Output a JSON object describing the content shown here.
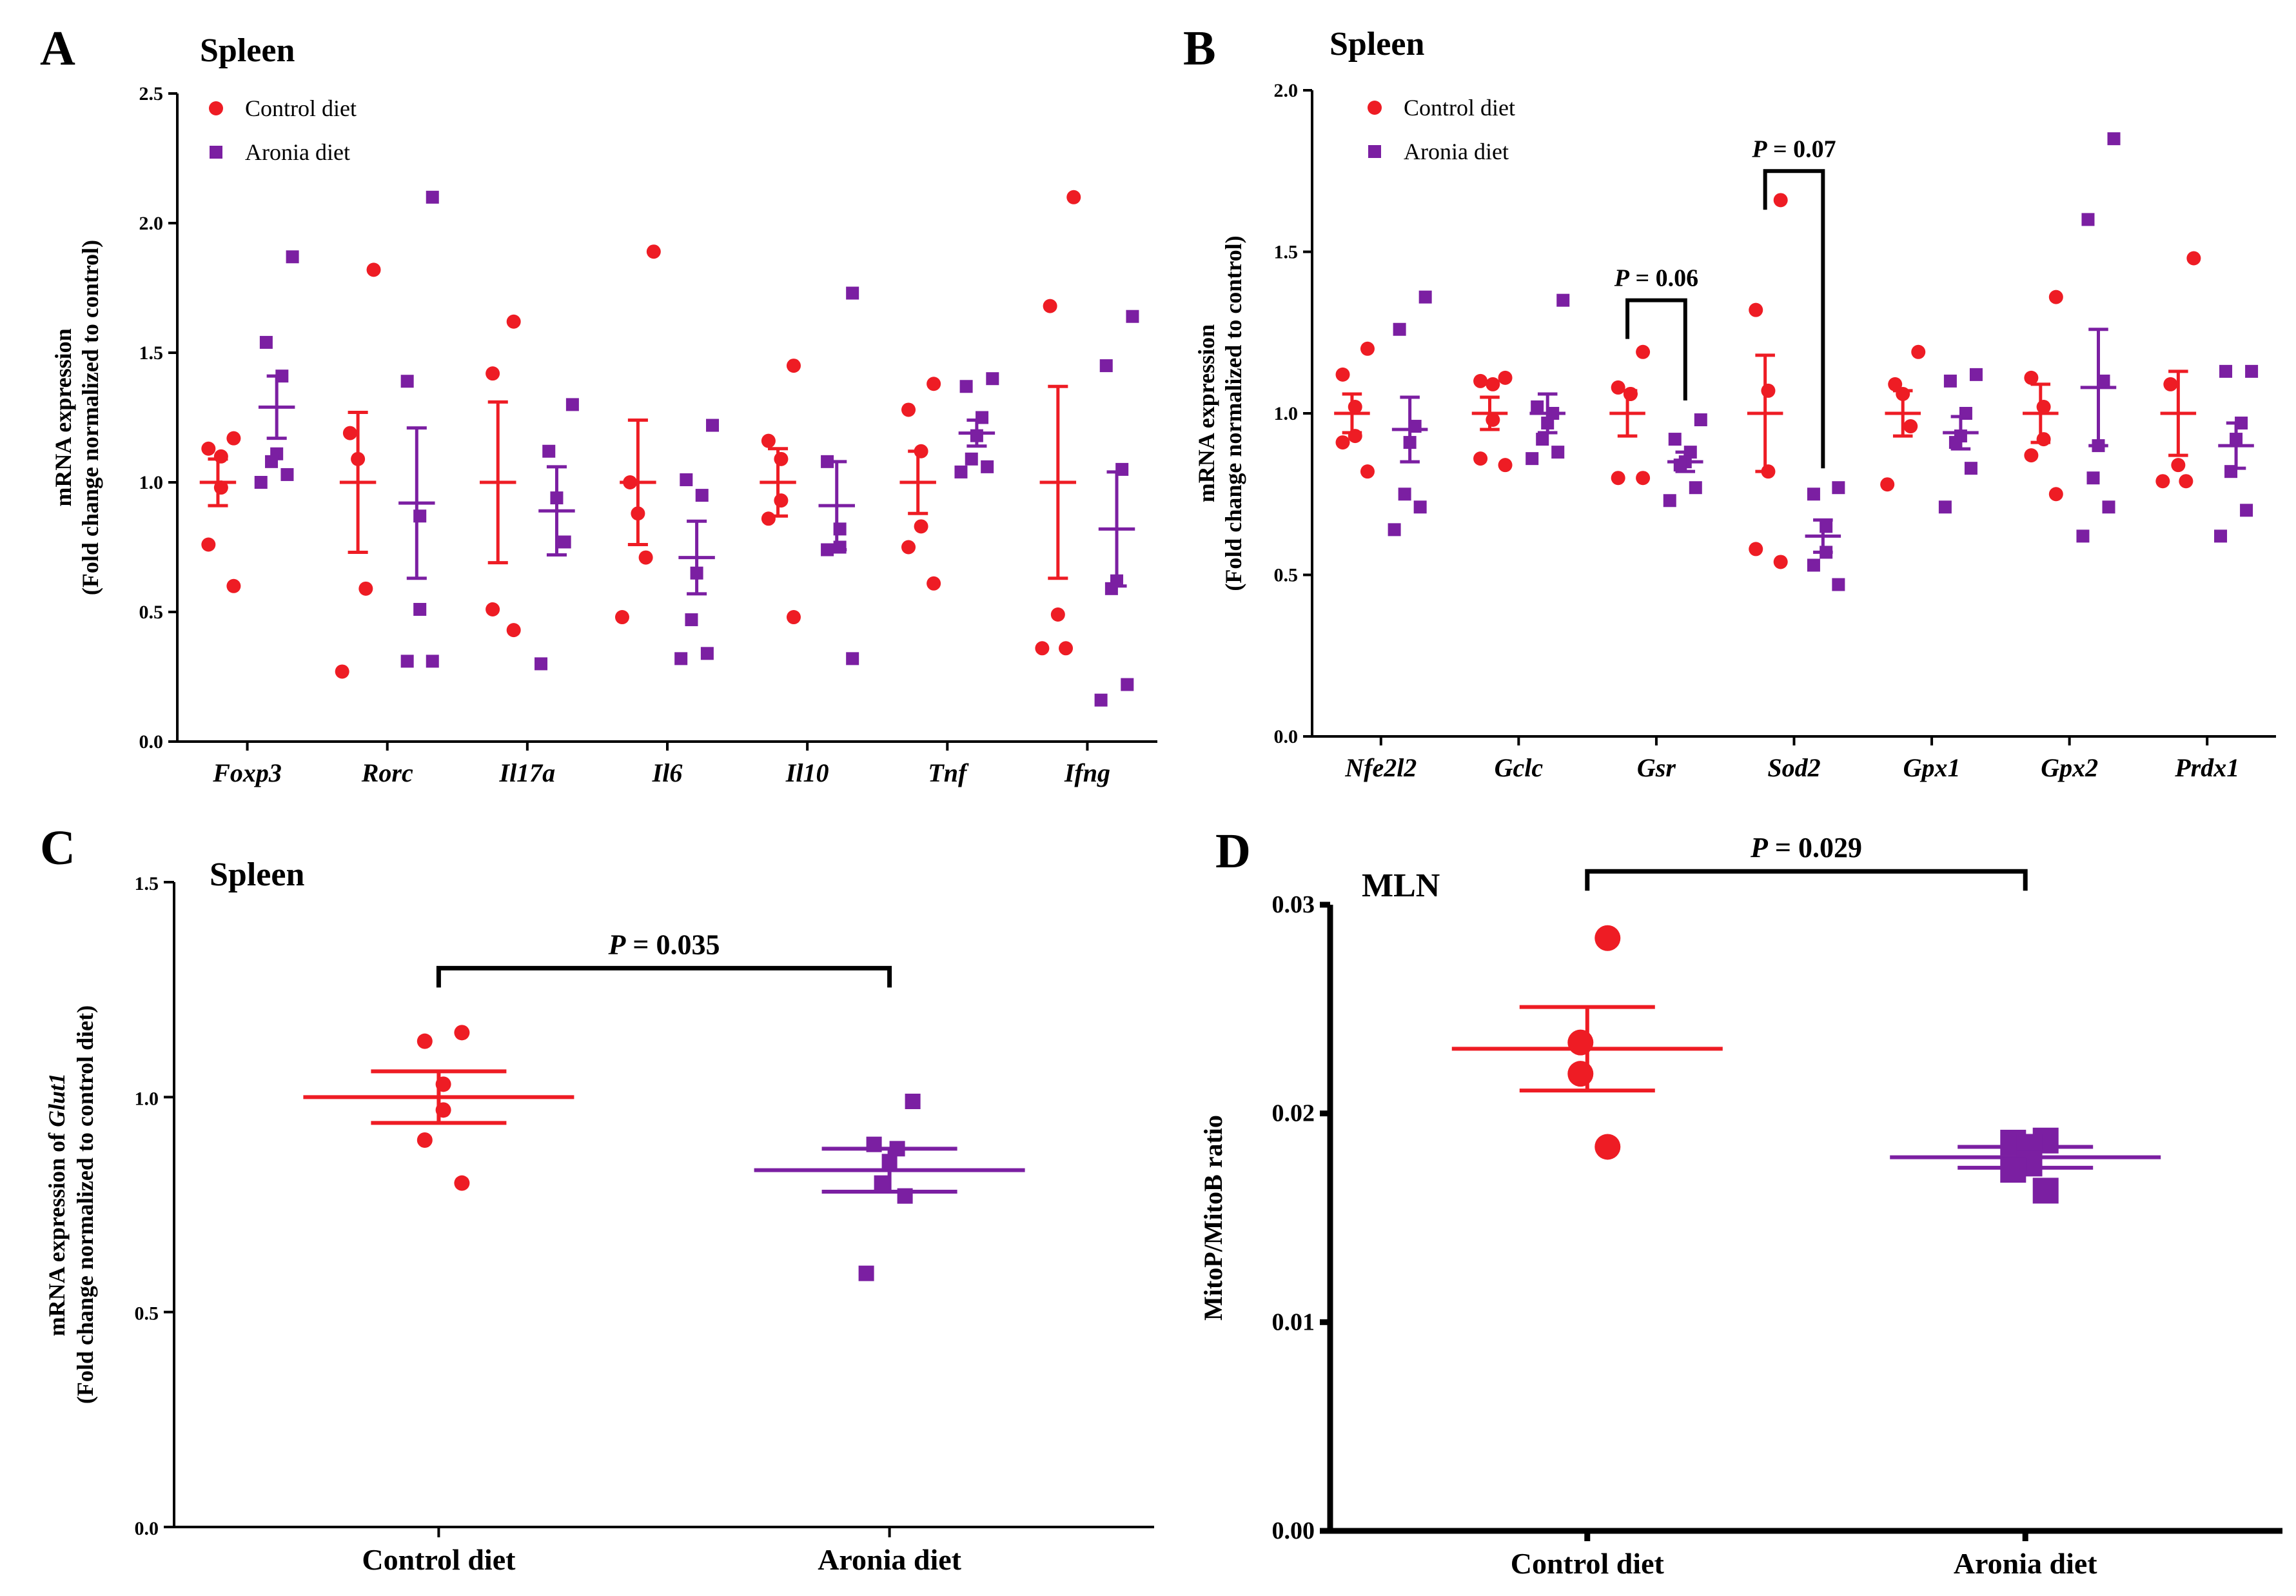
{
  "colors": {
    "control": "#ee1c24",
    "aronia": "#7b1fa2",
    "axis": "#000000"
  },
  "chart_data": [
    {
      "panel": "A",
      "type": "scatter",
      "title": "Spleen",
      "ylabel": "mRNA expression",
      "ylabel2": "(Fold change normalized to control)",
      "ylim": [
        0,
        2.5
      ],
      "yticks": [
        "0.0",
        "0.5",
        "1.0",
        "1.5",
        "2.0",
        "2.5"
      ],
      "legend": [
        "Control diet",
        "Aronia diet"
      ],
      "categories": [
        "Foxp3",
        "Rorc",
        "Il17a",
        "Il6",
        "Il10",
        "Tnf",
        "Ifng"
      ],
      "control": [
        {
          "points": [
            1.17,
            1.13,
            1.1,
            0.98,
            0.76,
            0.6
          ],
          "mean": 1.0,
          "sem": 0.09
        },
        {
          "points": [
            1.82,
            1.19,
            1.09,
            0.59,
            0.27
          ],
          "mean": 1.0,
          "sem": 0.27
        },
        {
          "points": [
            1.62,
            1.42,
            0.51,
            0.43
          ],
          "mean": 1.0,
          "sem": 0.31
        },
        {
          "points": [
            1.89,
            1.0,
            0.88,
            0.71,
            0.48
          ],
          "mean": 1.0,
          "sem": 0.24
        },
        {
          "points": [
            1.45,
            1.16,
            1.09,
            0.93,
            0.86,
            0.48
          ],
          "mean": 1.0,
          "sem": 0.13
        },
        {
          "points": [
            1.38,
            1.28,
            1.12,
            0.83,
            0.75,
            0.61
          ],
          "mean": 1.0,
          "sem": 0.12
        },
        {
          "points": [
            2.1,
            1.68,
            0.49,
            0.36,
            0.36
          ],
          "mean": 1.0,
          "sem": 0.37
        }
      ],
      "aronia": [
        {
          "points": [
            1.87,
            1.54,
            1.41,
            1.11,
            1.08,
            1.03,
            1.0
          ],
          "mean": 1.29,
          "sem": 0.12
        },
        {
          "points": [
            2.1,
            1.39,
            0.87,
            0.51,
            0.31,
            0.31
          ],
          "mean": 0.92,
          "sem": 0.29
        },
        {
          "points": [
            1.3,
            1.12,
            0.94,
            0.77,
            0.3
          ],
          "mean": 0.89,
          "sem": 0.17
        },
        {
          "points": [
            1.22,
            1.01,
            0.95,
            0.65,
            0.47,
            0.34,
            0.32
          ],
          "mean": 0.71,
          "sem": 0.14
        },
        {
          "points": [
            1.73,
            1.08,
            0.82,
            0.75,
            0.74,
            0.32
          ],
          "mean": 0.91,
          "sem": 0.17
        },
        {
          "points": [
            1.4,
            1.37,
            1.25,
            1.18,
            1.09,
            1.06,
            1.04
          ],
          "mean": 1.19,
          "sem": 0.05
        },
        {
          "points": [
            1.64,
            1.45,
            1.05,
            0.62,
            0.59,
            0.22,
            0.16
          ],
          "mean": 0.82,
          "sem": 0.22
        }
      ]
    },
    {
      "panel": "B",
      "type": "scatter",
      "title": "Spleen",
      "ylabel": "mRNA expression",
      "ylabel2": "(Fold change normalized to control)",
      "ylim": [
        0,
        2.0
      ],
      "yticks": [
        "0.0",
        "0.5",
        "1.0",
        "1.5",
        "2.0"
      ],
      "legend": [
        "Control diet",
        "Aronia diet"
      ],
      "categories": [
        "Nfe2l2",
        "Gclc",
        "Gsr",
        "Sod2",
        "Gpx1",
        "Gpx2",
        "Prdx1"
      ],
      "control": [
        {
          "points": [
            1.2,
            1.12,
            1.02,
            0.93,
            0.91,
            0.82
          ],
          "mean": 1.0,
          "sem": 0.06
        },
        {
          "points": [
            1.11,
            1.1,
            1.09,
            0.98,
            0.86,
            0.84
          ],
          "mean": 1.0,
          "sem": 0.05
        },
        {
          "points": [
            1.19,
            1.08,
            1.06,
            1.06,
            0.8,
            0.8
          ],
          "mean": 1.0,
          "sem": 0.07
        },
        {
          "points": [
            1.66,
            1.32,
            1.07,
            0.82,
            0.58,
            0.54
          ],
          "mean": 1.0,
          "sem": 0.18
        },
        {
          "points": [
            1.19,
            1.09,
            1.06,
            0.96,
            0.78
          ],
          "mean": 1.0,
          "sem": 0.07
        },
        {
          "points": [
            1.36,
            1.11,
            1.02,
            0.92,
            0.87,
            0.75
          ],
          "mean": 1.0,
          "sem": 0.09
        },
        {
          "points": [
            1.48,
            1.09,
            0.84,
            0.79,
            0.79
          ],
          "mean": 1.0,
          "sem": 0.13
        }
      ],
      "aronia": [
        {
          "points": [
            1.36,
            1.26,
            0.96,
            0.91,
            0.75,
            0.71,
            0.64
          ],
          "mean": 0.95,
          "sem": 0.1
        },
        {
          "points": [
            1.35,
            1.02,
            1.0,
            0.97,
            0.92,
            0.88,
            0.86
          ],
          "mean": 1.0,
          "sem": 0.06
        },
        {
          "points": [
            0.98,
            0.92,
            0.88,
            0.85,
            0.84,
            0.77,
            0.73
          ],
          "mean": 0.85,
          "sem": 0.03
        },
        {
          "points": [
            0.77,
            0.75,
            0.65,
            0.57,
            0.53,
            0.47
          ],
          "mean": 0.62,
          "sem": 0.05
        },
        {
          "points": [
            1.12,
            1.1,
            1.0,
            0.93,
            0.91,
            0.83,
            0.71
          ],
          "mean": 0.94,
          "sem": 0.05
        },
        {
          "points": [
            1.85,
            1.6,
            1.1,
            0.9,
            0.8,
            0.71,
            0.62
          ],
          "mean": 1.08,
          "sem": 0.18
        },
        {
          "points": [
            1.13,
            1.13,
            0.97,
            0.92,
            0.82,
            0.7,
            0.62
          ],
          "mean": 0.9,
          "sem": 0.07
        }
      ],
      "annotations": [
        {
          "text": "P = 0.06",
          "category": 2,
          "y": 1.35
        },
        {
          "text": "P = 0.07",
          "category": 3,
          "y": 1.75
        }
      ]
    },
    {
      "panel": "C",
      "type": "scatter",
      "title": "Spleen",
      "ylabel": "mRNA expression of Glut1",
      "ylabel2": "(Fold change normalized to control diet)",
      "ylim": [
        0,
        1.5
      ],
      "yticks": [
        "0.0",
        "0.5",
        "1.0",
        "1.5"
      ],
      "categories": [
        "Control diet",
        "Aronia diet"
      ],
      "control": {
        "points": [
          1.15,
          1.13,
          1.03,
          0.97,
          0.9,
          0.8
        ],
        "mean": 1.0,
        "sem": 0.06
      },
      "aronia": {
        "points": [
          0.99,
          0.89,
          0.88,
          0.85,
          0.8,
          0.77,
          0.59
        ],
        "mean": 0.83,
        "sem": 0.05
      },
      "annotation": {
        "text": "P = 0.035",
        "y": 1.3
      }
    },
    {
      "panel": "D",
      "type": "scatter",
      "title": "MLN",
      "ylabel": "MitoP/MitoB ratio",
      "ylim": [
        0,
        0.03
      ],
      "yticks": [
        "0.00",
        "0.01",
        "0.02",
        "0.03"
      ],
      "categories": [
        "Control diet",
        "Aronia diet"
      ],
      "control": {
        "points": [
          0.0284,
          0.0234,
          0.0219,
          0.0184
        ],
        "mean": 0.0231,
        "sem": 0.002
      },
      "aronia": {
        "points": [
          0.0187,
          0.0186,
          0.0184,
          0.0176,
          0.0173,
          0.0163
        ],
        "mean": 0.0179,
        "sem": 0.0005
      },
      "annotation": {
        "text": "P = 0.029",
        "y": 0.0316
      }
    }
  ]
}
